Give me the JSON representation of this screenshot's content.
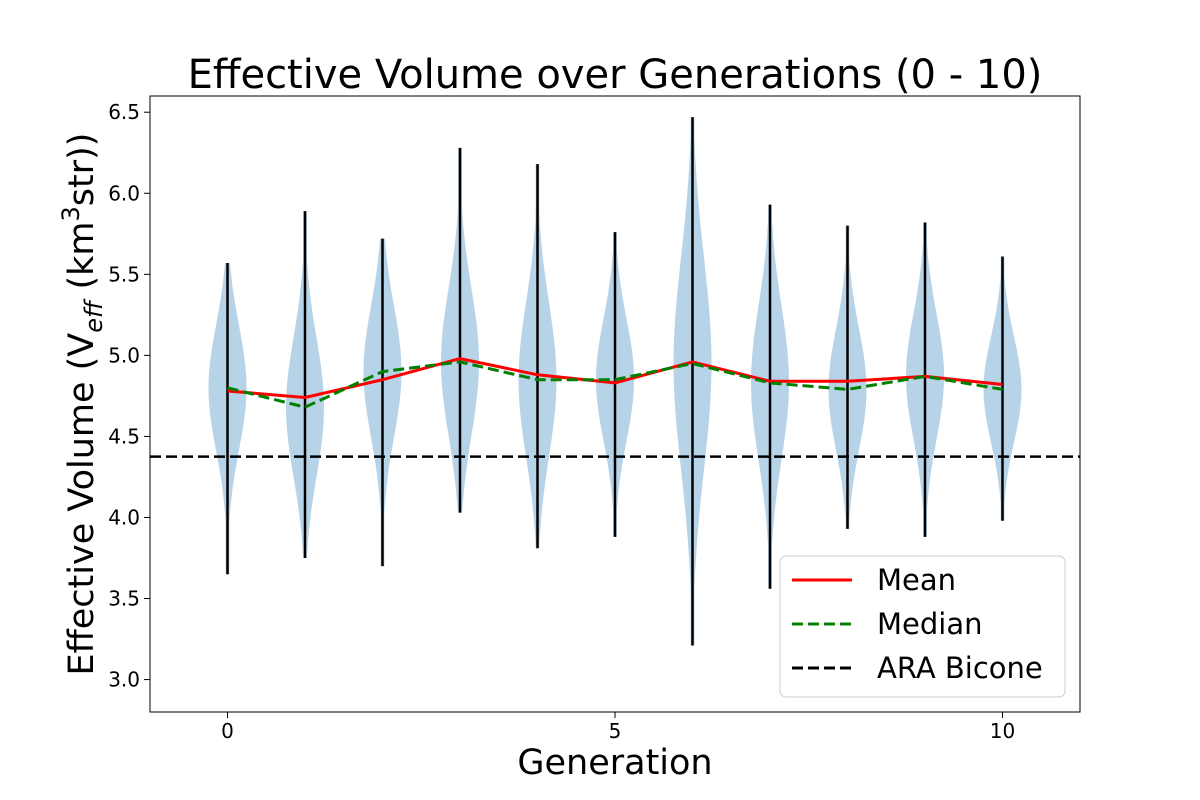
{
  "chart_data": {
    "type": "violin",
    "title": "Effective Volume over Generations (0 - 10)",
    "xlabel": "Generation",
    "ylabel": {
      "prefix": "Effective Volume (V",
      "subscript": "eff",
      "middle": " (km",
      "superscript": "3",
      "suffix": "str))"
    },
    "xlim": [
      -1.0,
      11.0
    ],
    "ylim": [
      2.8,
      6.6
    ],
    "x_ticks": [
      0,
      5,
      10
    ],
    "y_ticks": [
      3.0,
      3.5,
      4.0,
      4.5,
      5.0,
      5.5,
      6.0,
      6.5
    ],
    "y_tick_labels": [
      "3.0",
      "3.5",
      "4.0",
      "4.5",
      "5.0",
      "5.5",
      "6.0",
      "6.5"
    ],
    "generations": [
      0,
      1,
      2,
      3,
      4,
      5,
      6,
      7,
      8,
      9,
      10
    ],
    "min": [
      3.65,
      3.75,
      3.7,
      4.03,
      3.81,
      3.88,
      3.21,
      3.56,
      3.93,
      3.88,
      3.98
    ],
    "max": [
      5.57,
      5.89,
      5.72,
      6.28,
      6.18,
      5.76,
      6.47,
      5.93,
      5.8,
      5.82,
      5.61
    ],
    "series": [
      {
        "name": "Mean",
        "color": "#ff0000",
        "style": "solid",
        "values": [
          4.78,
          4.74,
          4.85,
          4.98,
          4.88,
          4.83,
          4.96,
          4.84,
          4.84,
          4.87,
          4.82
        ]
      },
      {
        "name": "Median",
        "color": "#008000",
        "style": "dashed",
        "values": [
          4.8,
          4.68,
          4.9,
          4.96,
          4.85,
          4.85,
          4.95,
          4.83,
          4.79,
          4.87,
          4.79
        ]
      }
    ],
    "reference_line": {
      "name": "ARA Bicone",
      "value": 4.375,
      "color": "#000000",
      "style": "dashed"
    },
    "violin_color": "#b7d3e8",
    "grid": false,
    "legend": {
      "placement": "lower-right",
      "entries": [
        "Mean",
        "Median",
        "ARA Bicone"
      ]
    }
  }
}
